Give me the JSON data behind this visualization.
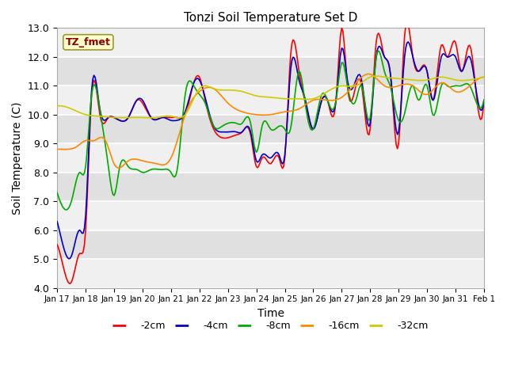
{
  "title": "Tonzi Soil Temperature Set D",
  "xlabel": "Time",
  "ylabel": "Soil Temperature (C)",
  "ylim": [
    4.0,
    13.0
  ],
  "yticks": [
    4.0,
    5.0,
    6.0,
    7.0,
    8.0,
    9.0,
    10.0,
    11.0,
    12.0,
    13.0
  ],
  "xtick_labels": [
    "Jan 17",
    "Jan 18",
    "Jan 19",
    "Jan 20",
    "Jan 21",
    "Jan 22",
    "Jan 23",
    "Jan 24",
    "Jan 25",
    "Jan 26",
    "Jan 27",
    "Jan 28",
    "Jan 29",
    "Jan 30",
    "Jan 31",
    "Feb 1"
  ],
  "annotation_text": "TZ_fmet",
  "annotation_color": "#8B0000",
  "annotation_bg": "#FFFFCC",
  "annotation_border": "#999933",
  "series_colors": [
    "#FF0000",
    "#0000CC",
    "#00AA00",
    "#FF8800",
    "#CCCC00"
  ],
  "series_labels": [
    "-2cm",
    "-4cm",
    "-8cm",
    "-16cm",
    "-32cm"
  ],
  "line_width": 1.2,
  "plot_bg_dark": "#DCDCDC",
  "plot_bg_light": "#F0F0F0",
  "n_points": 361
}
